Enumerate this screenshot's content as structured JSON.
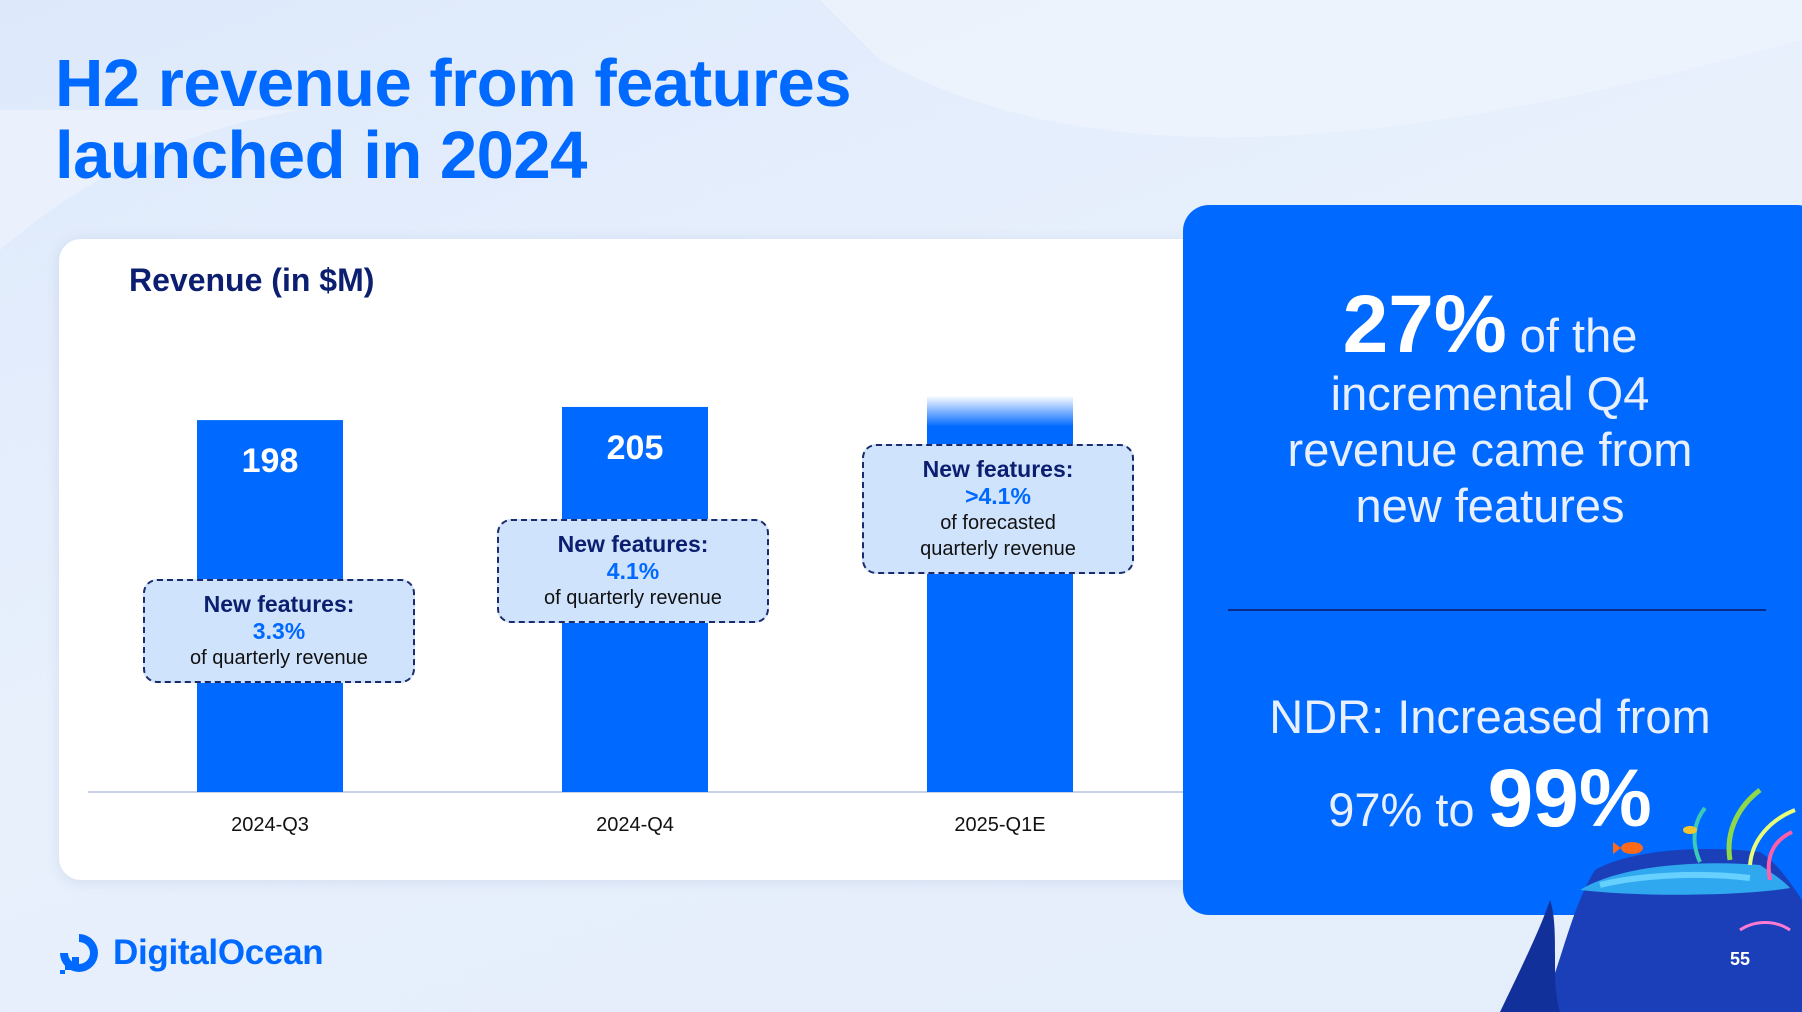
{
  "title_lines": [
    "H2 revenue from features",
    "launched in 2024"
  ],
  "chart_data": {
    "type": "bar",
    "title": "Revenue (in $M)",
    "categories": [
      "2024-Q3",
      "2024-Q4",
      "2025-Q1E"
    ],
    "values": [
      198,
      205,
      211
    ],
    "value_labels": [
      "198",
      "205",
      ""
    ],
    "ylim": [
      0,
      230
    ],
    "bar_color": "#0069ff",
    "last_bar_fades_top": true,
    "callouts": [
      {
        "heading": "New features:",
        "pct": "3.3%",
        "lines": [
          "of quarterly revenue"
        ]
      },
      {
        "heading": "New features:",
        "pct": "4.1%",
        "lines": [
          "of quarterly revenue"
        ]
      },
      {
        "heading": "New features:",
        "pct": ">4.1%",
        "lines": [
          "of forecasted",
          "quarterly revenue"
        ]
      }
    ]
  },
  "panel": {
    "stat1_big": "27%",
    "stat1_rest_1": "of the",
    "stat1_rest_2": "incremental Q4 revenue came from new features",
    "stat2_text_1": "NDR: Increased from",
    "stat2_text_2": "97% to",
    "stat2_big": "99%"
  },
  "brand": {
    "name": "DigitalOcean",
    "color": "#0069ff"
  },
  "page_number": "55"
}
